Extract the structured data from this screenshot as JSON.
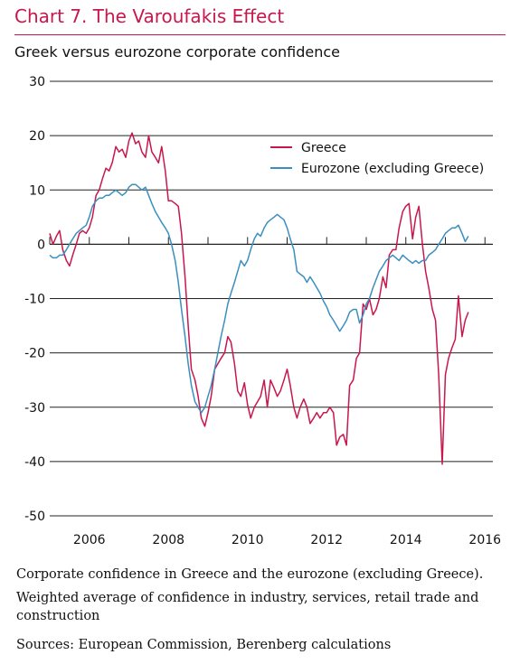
{
  "header": {
    "title": "Chart 7. The Varoufakis Effect",
    "subtitle": "Greek versus eurozone corporate confidence"
  },
  "footer": {
    "description": "Corporate confidence in Greece and the eurozone (excluding Greece).",
    "detail": "Weighted average of confidence in industry, services, retail trade and construction",
    "sources": "Sources: European Commission, Berenberg calculations"
  },
  "colors": {
    "title": "#c8174d",
    "greece": "#c8174d",
    "eurozone": "#3b8fbf"
  },
  "chart_data": {
    "type": "line",
    "title": "Greek versus eurozone corporate confidence",
    "xlabel": "",
    "ylabel": "",
    "xlim": [
      2005.0,
      2016.2
    ],
    "ylim": [
      -50,
      30
    ],
    "yticks": [
      30,
      20,
      10,
      0,
      -10,
      -20,
      -30,
      -40,
      -50
    ],
    "xticks": [
      2006,
      2008,
      2010,
      2012,
      2014,
      2016
    ],
    "grid": true,
    "legend": "top-right",
    "series": [
      {
        "name": "Greece",
        "color": "#c8174d",
        "points": [
          [
            2005.0,
            2
          ],
          [
            2005.08,
            0
          ],
          [
            2005.17,
            1.5
          ],
          [
            2005.25,
            2.5
          ],
          [
            2005.33,
            -1
          ],
          [
            2005.42,
            -3
          ],
          [
            2005.5,
            -4
          ],
          [
            2005.58,
            -2
          ],
          [
            2005.67,
            0
          ],
          [
            2005.75,
            2
          ],
          [
            2005.83,
            2.5
          ],
          [
            2005.92,
            2
          ],
          [
            2006.0,
            3
          ],
          [
            2006.08,
            5
          ],
          [
            2006.17,
            9
          ],
          [
            2006.25,
            10
          ],
          [
            2006.33,
            12
          ],
          [
            2006.42,
            14
          ],
          [
            2006.5,
            13.5
          ],
          [
            2006.58,
            15
          ],
          [
            2006.67,
            18
          ],
          [
            2006.75,
            17
          ],
          [
            2006.83,
            17.5
          ],
          [
            2006.92,
            16
          ],
          [
            2007.0,
            19
          ],
          [
            2007.08,
            20.5
          ],
          [
            2007.17,
            18.5
          ],
          [
            2007.25,
            19
          ],
          [
            2007.33,
            17
          ],
          [
            2007.42,
            16
          ],
          [
            2007.5,
            20
          ],
          [
            2007.58,
            17
          ],
          [
            2007.67,
            16
          ],
          [
            2007.75,
            15
          ],
          [
            2007.83,
            18
          ],
          [
            2007.92,
            13.5
          ],
          [
            2008.0,
            8
          ],
          [
            2008.08,
            8
          ],
          [
            2008.17,
            7.5
          ],
          [
            2008.25,
            7
          ],
          [
            2008.33,
            2
          ],
          [
            2008.42,
            -6
          ],
          [
            2008.5,
            -15
          ],
          [
            2008.58,
            -23
          ],
          [
            2008.67,
            -25
          ],
          [
            2008.75,
            -28
          ],
          [
            2008.83,
            -32
          ],
          [
            2008.92,
            -33.5
          ],
          [
            2009.0,
            -31
          ],
          [
            2009.08,
            -28
          ],
          [
            2009.17,
            -23
          ],
          [
            2009.25,
            -22
          ],
          [
            2009.33,
            -21
          ],
          [
            2009.42,
            -20
          ],
          [
            2009.5,
            -17
          ],
          [
            2009.58,
            -18
          ],
          [
            2009.67,
            -22
          ],
          [
            2009.75,
            -27
          ],
          [
            2009.83,
            -28
          ],
          [
            2009.92,
            -25.5
          ],
          [
            2010.0,
            -29.5
          ],
          [
            2010.08,
            -32
          ],
          [
            2010.17,
            -30
          ],
          [
            2010.25,
            -29
          ],
          [
            2010.33,
            -28
          ],
          [
            2010.42,
            -25
          ],
          [
            2010.5,
            -30
          ],
          [
            2010.58,
            -25
          ],
          [
            2010.67,
            -26.5
          ],
          [
            2010.75,
            -28
          ],
          [
            2010.83,
            -27
          ],
          [
            2010.92,
            -25
          ],
          [
            2011.0,
            -23
          ],
          [
            2011.08,
            -26
          ],
          [
            2011.17,
            -30
          ],
          [
            2011.25,
            -32
          ],
          [
            2011.33,
            -30
          ],
          [
            2011.42,
            -28.5
          ],
          [
            2011.5,
            -30
          ],
          [
            2011.58,
            -33
          ],
          [
            2011.67,
            -32
          ],
          [
            2011.75,
            -31
          ],
          [
            2011.83,
            -32
          ],
          [
            2011.92,
            -31
          ],
          [
            2012.0,
            -31
          ],
          [
            2012.08,
            -30
          ],
          [
            2012.17,
            -31
          ],
          [
            2012.25,
            -37
          ],
          [
            2012.33,
            -35.5
          ],
          [
            2012.42,
            -35
          ],
          [
            2012.5,
            -37
          ],
          [
            2012.58,
            -26
          ],
          [
            2012.67,
            -25
          ],
          [
            2012.75,
            -21
          ],
          [
            2012.83,
            -20
          ],
          [
            2012.92,
            -11
          ],
          [
            2013.0,
            -12
          ],
          [
            2013.08,
            -10
          ],
          [
            2013.17,
            -13
          ],
          [
            2013.25,
            -12
          ],
          [
            2013.33,
            -10
          ],
          [
            2013.42,
            -6
          ],
          [
            2013.5,
            -8
          ],
          [
            2013.58,
            -2
          ],
          [
            2013.67,
            -1
          ],
          [
            2013.75,
            -1
          ],
          [
            2013.83,
            3
          ],
          [
            2013.92,
            6
          ],
          [
            2014.0,
            7
          ],
          [
            2014.08,
            7.5
          ],
          [
            2014.17,
            1
          ],
          [
            2014.25,
            5
          ],
          [
            2014.33,
            7
          ],
          [
            2014.42,
            0
          ],
          [
            2014.5,
            -5
          ],
          [
            2014.58,
            -8
          ],
          [
            2014.67,
            -12
          ],
          [
            2014.75,
            -14
          ],
          [
            2014.83,
            -24
          ],
          [
            2014.92,
            -40.5
          ],
          [
            2015.0,
            -24
          ],
          [
            2015.08,
            -21
          ],
          [
            2015.17,
            -19
          ],
          [
            2015.25,
            -17.5
          ],
          [
            2015.33,
            -9.5
          ],
          [
            2015.42,
            -17
          ],
          [
            2015.5,
            -14
          ],
          [
            2015.58,
            -12.5
          ]
        ]
      },
      {
        "name": "Eurozone (excluding Greece)",
        "color": "#3b8fbf",
        "points": [
          [
            2005.0,
            -2
          ],
          [
            2005.08,
            -2.5
          ],
          [
            2005.17,
            -2.5
          ],
          [
            2005.25,
            -2
          ],
          [
            2005.33,
            -2
          ],
          [
            2005.42,
            -1
          ],
          [
            2005.5,
            0
          ],
          [
            2005.58,
            1
          ],
          [
            2005.67,
            2
          ],
          [
            2005.75,
            2.5
          ],
          [
            2005.83,
            3
          ],
          [
            2005.92,
            3.5
          ],
          [
            2006.0,
            5
          ],
          [
            2006.08,
            7
          ],
          [
            2006.17,
            8
          ],
          [
            2006.25,
            8.5
          ],
          [
            2006.33,
            8.5
          ],
          [
            2006.42,
            9
          ],
          [
            2006.5,
            9
          ],
          [
            2006.58,
            9.5
          ],
          [
            2006.67,
            10
          ],
          [
            2006.75,
            9.5
          ],
          [
            2006.83,
            9
          ],
          [
            2006.92,
            9.5
          ],
          [
            2007.0,
            10.5
          ],
          [
            2007.08,
            11
          ],
          [
            2007.17,
            11
          ],
          [
            2007.25,
            10.5
          ],
          [
            2007.33,
            10
          ],
          [
            2007.42,
            10.5
          ],
          [
            2007.5,
            9
          ],
          [
            2007.58,
            7.5
          ],
          [
            2007.67,
            6
          ],
          [
            2007.75,
            5
          ],
          [
            2007.83,
            4
          ],
          [
            2007.92,
            3
          ],
          [
            2008.0,
            2
          ],
          [
            2008.08,
            0
          ],
          [
            2008.17,
            -3
          ],
          [
            2008.25,
            -7
          ],
          [
            2008.33,
            -12
          ],
          [
            2008.42,
            -17
          ],
          [
            2008.5,
            -22
          ],
          [
            2008.58,
            -26
          ],
          [
            2008.67,
            -29
          ],
          [
            2008.75,
            -30
          ],
          [
            2008.83,
            -31
          ],
          [
            2008.92,
            -30
          ],
          [
            2009.0,
            -28
          ],
          [
            2009.08,
            -26
          ],
          [
            2009.17,
            -23
          ],
          [
            2009.25,
            -20
          ],
          [
            2009.33,
            -17
          ],
          [
            2009.42,
            -14
          ],
          [
            2009.5,
            -11
          ],
          [
            2009.58,
            -9
          ],
          [
            2009.67,
            -7
          ],
          [
            2009.75,
            -5
          ],
          [
            2009.83,
            -3
          ],
          [
            2009.92,
            -4
          ],
          [
            2010.0,
            -3
          ],
          [
            2010.08,
            -1
          ],
          [
            2010.17,
            1
          ],
          [
            2010.25,
            2
          ],
          [
            2010.33,
            1.5
          ],
          [
            2010.42,
            3
          ],
          [
            2010.5,
            4
          ],
          [
            2010.58,
            4.5
          ],
          [
            2010.67,
            5
          ],
          [
            2010.75,
            5.5
          ],
          [
            2010.83,
            5
          ],
          [
            2010.92,
            4.5
          ],
          [
            2011.0,
            3
          ],
          [
            2011.08,
            1
          ],
          [
            2011.17,
            -1
          ],
          [
            2011.25,
            -5
          ],
          [
            2011.33,
            -5.5
          ],
          [
            2011.42,
            -6
          ],
          [
            2011.5,
            -7
          ],
          [
            2011.58,
            -6
          ],
          [
            2011.67,
            -7
          ],
          [
            2011.75,
            -8
          ],
          [
            2011.83,
            -9
          ],
          [
            2011.92,
            -10.5
          ],
          [
            2012.0,
            -11.5
          ],
          [
            2012.08,
            -13
          ],
          [
            2012.17,
            -14
          ],
          [
            2012.25,
            -15
          ],
          [
            2012.33,
            -16
          ],
          [
            2012.42,
            -15
          ],
          [
            2012.5,
            -14
          ],
          [
            2012.58,
            -12.5
          ],
          [
            2012.67,
            -12
          ],
          [
            2012.75,
            -12
          ],
          [
            2012.83,
            -14.5
          ],
          [
            2012.92,
            -13
          ],
          [
            2013.0,
            -11
          ],
          [
            2013.08,
            -10
          ],
          [
            2013.17,
            -8
          ],
          [
            2013.25,
            -6.5
          ],
          [
            2013.33,
            -5
          ],
          [
            2013.42,
            -4
          ],
          [
            2013.5,
            -3
          ],
          [
            2013.58,
            -2.5
          ],
          [
            2013.67,
            -2
          ],
          [
            2013.75,
            -2.5
          ],
          [
            2013.83,
            -3
          ],
          [
            2013.92,
            -2
          ],
          [
            2014.0,
            -2.5
          ],
          [
            2014.08,
            -3
          ],
          [
            2014.17,
            -3.5
          ],
          [
            2014.25,
            -3
          ],
          [
            2014.33,
            -3.5
          ],
          [
            2014.42,
            -3
          ],
          [
            2014.5,
            -3
          ],
          [
            2014.58,
            -2
          ],
          [
            2014.67,
            -1.5
          ],
          [
            2014.75,
            -1
          ],
          [
            2014.83,
            0
          ],
          [
            2014.92,
            1
          ],
          [
            2015.0,
            2
          ],
          [
            2015.08,
            2.5
          ],
          [
            2015.17,
            3
          ],
          [
            2015.25,
            3
          ],
          [
            2015.33,
            3.5
          ],
          [
            2015.42,
            2
          ],
          [
            2015.5,
            0.5
          ],
          [
            2015.58,
            1.5
          ]
        ]
      }
    ]
  }
}
